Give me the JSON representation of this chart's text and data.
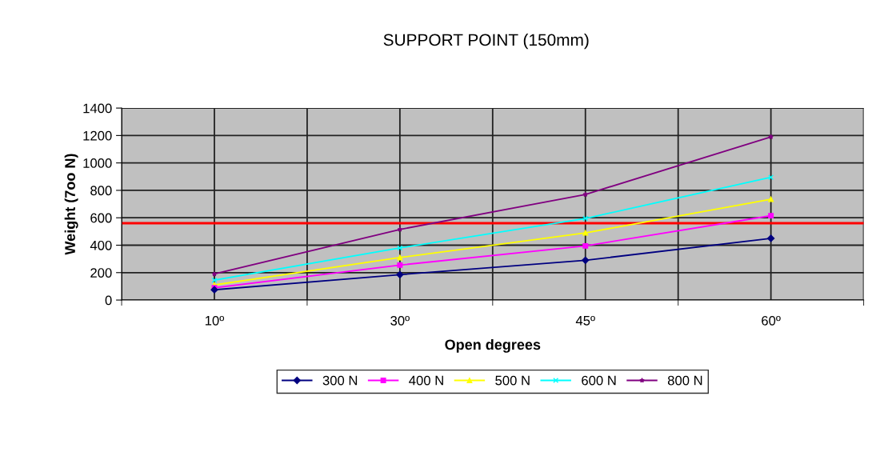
{
  "chart_data": {
    "type": "line",
    "title": "SUPPORT POINT (150mm)",
    "xlabel": "Open degrees",
    "ylabel": "Weight (7oo N)",
    "categories": [
      "10º",
      "30º",
      "45º",
      "60º"
    ],
    "series": [
      {
        "name": "300 N",
        "color": "#000080",
        "marker": "diamond",
        "values": [
          75,
          185,
          290,
          450
        ]
      },
      {
        "name": "400 N",
        "color": "#ff00ff",
        "marker": "square",
        "values": [
          90,
          255,
          395,
          615
        ]
      },
      {
        "name": "500 N",
        "color": "#ffff00",
        "marker": "triangle",
        "values": [
          110,
          310,
          490,
          735
        ]
      },
      {
        "name": "600 N",
        "color": "#00ffff",
        "marker": "cross",
        "values": [
          145,
          380,
          595,
          895
        ]
      },
      {
        "name": "800 N",
        "color": "#800080",
        "marker": "star",
        "values": [
          190,
          515,
          770,
          1190
        ]
      }
    ],
    "ylim": [
      0,
      1400
    ],
    "yticks": [
      0,
      200,
      400,
      600,
      800,
      1000,
      1200,
      1400
    ],
    "ref_lines": [
      {
        "axis": "y",
        "value": 560,
        "color": "#ff0000"
      }
    ],
    "grid": true,
    "legend": "bottom",
    "line_style": "solid"
  }
}
